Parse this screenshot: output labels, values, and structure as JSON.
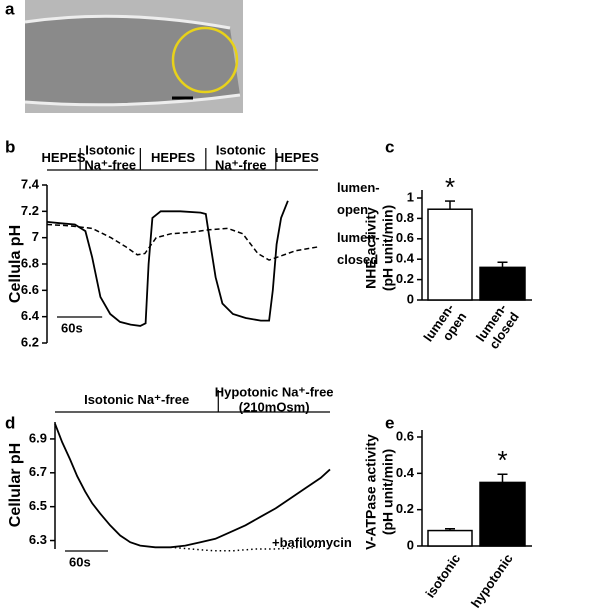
{
  "panel_labels": [
    "a",
    "b",
    "c",
    "d",
    "e"
  ],
  "chart_data": [
    {
      "type": "line",
      "y_label": "Cellula pH",
      "xlim": [
        0,
        360
      ],
      "ylim": [
        6.2,
        7.4
      ],
      "yticks": [
        6.2,
        6.4,
        6.6,
        6.8,
        7,
        7.2,
        7.4
      ],
      "scale_bar": {
        "value": 60,
        "label": "60s"
      },
      "conditions": [
        {
          "lines": [
            "HEPES"
          ],
          "range": [
            0,
            44
          ]
        },
        {
          "lines": [
            "Isotonic",
            "Na⁺-free"
          ],
          "range": [
            44,
            124
          ]
        },
        {
          "lines": [
            "HEPES"
          ],
          "range": [
            124,
            211
          ]
        },
        {
          "lines": [
            "Isotonic",
            "Na⁺-free"
          ],
          "range": [
            211,
            304
          ]
        },
        {
          "lines": [
            "HEPES"
          ],
          "range": [
            304,
            360
          ]
        }
      ],
      "series": [
        {
          "label_lines": [
            "lumen-",
            "open"
          ],
          "color": "#000",
          "style": "solid",
          "x": [
            0,
            17,
            37,
            51,
            60,
            71,
            84,
            97,
            111,
            124,
            131,
            135,
            140,
            151,
            177,
            204,
            211,
            217,
            224,
            233,
            247,
            264,
            284,
            295,
            300,
            305,
            311,
            320
          ],
          "values": [
            7.12,
            7.11,
            7.1,
            7.05,
            6.85,
            6.55,
            6.42,
            6.36,
            6.34,
            6.33,
            6.35,
            6.8,
            7.15,
            7.2,
            7.2,
            7.19,
            7.18,
            6.95,
            6.7,
            6.5,
            6.42,
            6.39,
            6.37,
            6.37,
            6.6,
            6.95,
            7.15,
            7.28
          ]
        },
        {
          "label_lines": [
            "lumen-",
            "closed"
          ],
          "color": "#000",
          "style": "dashed",
          "x": [
            0,
            30,
            60,
            85,
            105,
            120,
            130,
            145,
            165,
            190,
            215,
            240,
            260,
            280,
            295,
            310,
            330,
            360
          ],
          "values": [
            7.1,
            7.09,
            7.07,
            7.0,
            6.93,
            6.87,
            6.88,
            7.0,
            7.03,
            7.04,
            7.06,
            7.07,
            7.03,
            6.88,
            6.83,
            6.86,
            6.9,
            6.93
          ]
        }
      ]
    },
    {
      "type": "bar",
      "y_label": [
        "NHE activity",
        "(pH unit/min)"
      ],
      "categories": [
        [
          "lumen-",
          "open"
        ],
        [
          "lumen-",
          "closed"
        ]
      ],
      "values": [
        0.89,
        0.32
      ],
      "errors": [
        0.08,
        0.05
      ],
      "colors": [
        "#fff",
        "#000"
      ],
      "significance": [
        "*",
        null
      ],
      "ylim": [
        0,
        1
      ],
      "yticks": [
        0,
        0.2,
        0.4,
        0.6,
        0.8,
        1
      ]
    },
    {
      "type": "line",
      "y_label": "Cellular pH",
      "xlim": [
        0,
        384
      ],
      "ylim": [
        6.25,
        7.0
      ],
      "yticks": [
        6.3,
        6.5,
        6.7,
        6.9
      ],
      "scale_bar": {
        "value": 60,
        "label": "60s"
      },
      "conditions": [
        {
          "lines": [
            "Isotonic Na⁺-free"
          ],
          "range": [
            0,
            228
          ]
        },
        {
          "lines": [
            "Hypotonic Na⁺-free",
            "(210mOsm)"
          ],
          "range": [
            228,
            384
          ]
        }
      ],
      "series": [
        {
          "color": "#000",
          "style": "solid",
          "x": [
            0,
            10,
            21,
            31,
            42,
            52,
            63,
            77,
            91,
            105,
            119,
            140,
            161,
            182,
            203,
            224,
            245,
            266,
            287,
            308,
            329,
            350,
            371,
            384
          ],
          "values": [
            6.99,
            6.88,
            6.78,
            6.68,
            6.59,
            6.52,
            6.46,
            6.39,
            6.33,
            6.29,
            6.27,
            6.26,
            6.26,
            6.27,
            6.29,
            6.31,
            6.35,
            6.39,
            6.44,
            6.49,
            6.55,
            6.61,
            6.67,
            6.72
          ]
        },
        {
          "label_lines": [
            "+bafilomycin"
          ],
          "color": "#000",
          "style": "dotted",
          "x": [
            161,
            190,
            220,
            250,
            280,
            310,
            340,
            370
          ],
          "values": [
            6.26,
            6.25,
            6.24,
            6.24,
            6.25,
            6.25,
            6.26,
            6.26
          ]
        }
      ]
    },
    {
      "type": "bar",
      "y_label": [
        "V-ATPase activity",
        "(pH unit/min)"
      ],
      "categories": [
        [
          "isotonic"
        ],
        [
          "hypotonic"
        ]
      ],
      "values": [
        0.085,
        0.35
      ],
      "errors": [
        0.01,
        0.045
      ],
      "colors": [
        "#fff",
        "#000"
      ],
      "significance": [
        null,
        "*"
      ],
      "ylim": [
        0,
        0.6
      ],
      "yticks": [
        0,
        0.2,
        0.4,
        0.6
      ]
    }
  ]
}
